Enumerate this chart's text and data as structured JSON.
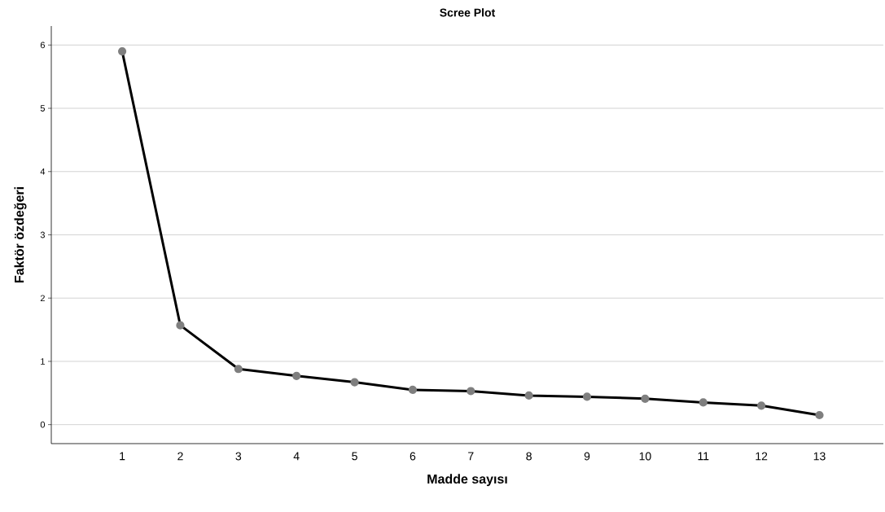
{
  "chart_data": {
    "type": "line",
    "title": "Scree Plot",
    "xlabel": "Madde sayısı",
    "ylabel": "Faktör özdeğeri",
    "categories": [
      "1",
      "2",
      "3",
      "4",
      "5",
      "6",
      "7",
      "8",
      "9",
      "10",
      "11",
      "12",
      "13"
    ],
    "series": [
      {
        "color": "#000000",
        "values": [
          5.9,
          1.57,
          0.88,
          0.77,
          0.67,
          0.55,
          0.53,
          0.46,
          0.44,
          0.41,
          0.35,
          0.3,
          0.15
        ]
      }
    ],
    "ylim": [
      -0.3,
      6.3
    ],
    "yticks": [
      0,
      1,
      2,
      3,
      4,
      5,
      6
    ],
    "grid": "y",
    "marker": "circle",
    "line_style": "solid"
  }
}
